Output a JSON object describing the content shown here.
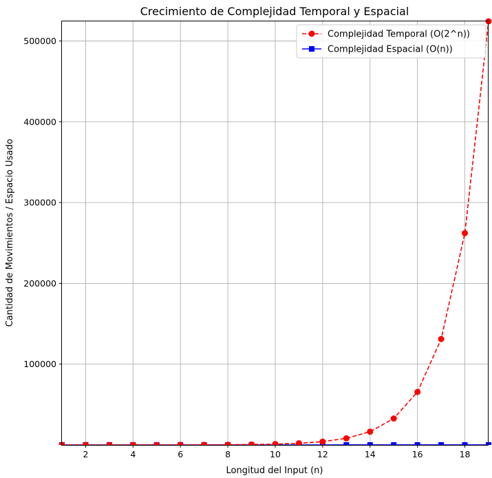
{
  "chart_data": {
    "type": "line",
    "title": "Crecimiento de Complejidad Temporal y Espacial",
    "xlabel": "Longitud del Input (n)",
    "ylabel": "Cantidad de Movimientos / Espacio Usado",
    "xlim": [
      1,
      19
    ],
    "ylim": [
      0,
      524288
    ],
    "xticks": [
      2,
      4,
      6,
      8,
      10,
      12,
      14,
      16,
      18
    ],
    "yticks": [
      100000,
      200000,
      300000,
      400000,
      500000
    ],
    "grid": true,
    "legend_position": "top-right",
    "x": [
      1,
      2,
      3,
      4,
      5,
      6,
      7,
      8,
      9,
      10,
      11,
      12,
      13,
      14,
      15,
      16,
      17,
      18,
      19
    ],
    "series": [
      {
        "name": "Complejidad Temporal (O(2^n))",
        "color": "#ff0000",
        "line_style": "dashed",
        "marker": "circle",
        "values": [
          2,
          4,
          8,
          16,
          32,
          64,
          128,
          256,
          512,
          1024,
          2048,
          4096,
          8192,
          16384,
          32768,
          65536,
          131072,
          262144,
          524288
        ]
      },
      {
        "name": "Complejidad Espacial (O(n))",
        "color": "#0000ff",
        "line_style": "solid",
        "marker": "square",
        "values": [
          1,
          2,
          3,
          4,
          5,
          6,
          7,
          8,
          9,
          10,
          11,
          12,
          13,
          14,
          15,
          16,
          17,
          18,
          19
        ]
      }
    ]
  }
}
